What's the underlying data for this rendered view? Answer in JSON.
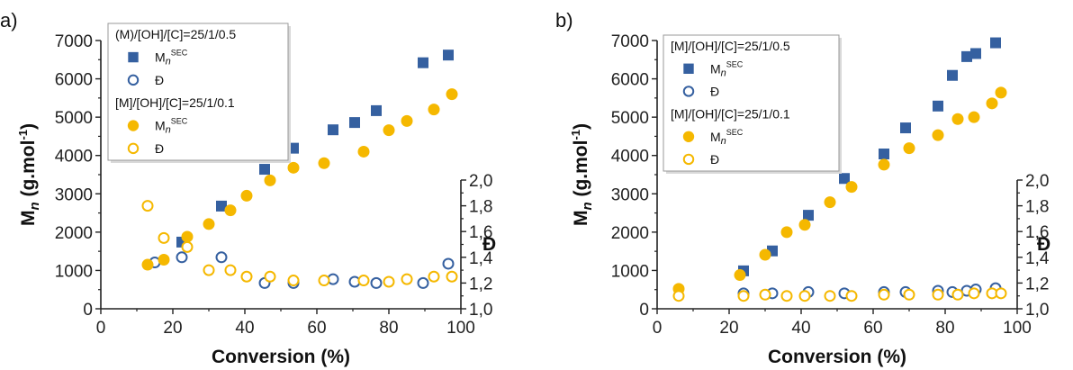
{
  "colors": {
    "blue": "#3560A0",
    "orange": "#F5B800",
    "axis": "#222222"
  },
  "chart_data": [
    {
      "panel": "a)",
      "type": "scatter",
      "xlabel": "Conversion (%)",
      "ylabel_left": {
        "main": "M",
        "sub": "n",
        "rest": " (g.mol",
        "sup": "-1",
        "end": ")"
      },
      "ylabel_right": "Đ",
      "xlim": [
        0,
        100
      ],
      "ylim_left": [
        0,
        7000
      ],
      "ylim_right": [
        1.0,
        2.0
      ],
      "x_ticks": [
        "0",
        "20",
        "40",
        "60",
        "80",
        "100"
      ],
      "y_left_ticks": [
        "0",
        "1000",
        "2000",
        "3000",
        "4000",
        "5000",
        "6000",
        "7000"
      ],
      "y_right_ticks": [
        "1,0",
        "1,2",
        "1,4",
        "1,6",
        "1,8",
        "2,0"
      ],
      "legend": [
        {
          "type": "header",
          "text": "(M)/[OH]/[C]=25/1/0.5"
        },
        {
          "type": "item",
          "marker": "square",
          "color": "blue",
          "text": "M",
          "sub": "n",
          "sup": "SEC"
        },
        {
          "type": "item",
          "marker": "circle-open",
          "color": "blue",
          "text": "Đ"
        },
        {
          "type": "header",
          "text": "[M]/[OH]/[C]=25/1/0.1"
        },
        {
          "type": "item",
          "marker": "circle",
          "color": "orange",
          "text": "M",
          "sub": "n",
          "sup": "SEC"
        },
        {
          "type": "item",
          "marker": "circle-open",
          "color": "orange",
          "text": "Đ"
        }
      ],
      "series": [
        {
          "marker": "square",
          "color": "blue",
          "axis": "left",
          "x": [
            22.5,
            33.5,
            45.5,
            53.5,
            64.5,
            70.5,
            76.5,
            89.5,
            96.5
          ],
          "y": [
            1740,
            2680,
            3640,
            4190,
            4670,
            4860,
            5170,
            6420,
            6620
          ]
        },
        {
          "marker": "circle-open",
          "color": "blue",
          "axis": "right",
          "x": [
            15,
            22.5,
            33.5,
            45.5,
            53.5,
            64.5,
            70.5,
            76.5,
            89.5,
            96.5
          ],
          "y": [
            1.36,
            1.4,
            1.4,
            1.2,
            1.2,
            1.23,
            1.21,
            1.2,
            1.2,
            1.35
          ]
        },
        {
          "marker": "circle",
          "color": "orange",
          "axis": "left",
          "x": [
            13,
            17.5,
            24,
            30,
            36,
            40.5,
            47,
            53.5,
            62,
            73,
            80,
            85,
            92.5,
            97.5
          ],
          "y": [
            1150,
            1280,
            1880,
            2210,
            2570,
            2950,
            3350,
            3680,
            3800,
            4100,
            4660,
            4900,
            5200,
            5600
          ]
        },
        {
          "marker": "circle-open",
          "color": "orange",
          "axis": "right",
          "x": [
            13,
            17.5,
            24,
            30,
            36,
            40.5,
            47,
            53.5,
            62,
            73,
            80,
            85,
            92.5,
            97.5
          ],
          "y": [
            1.8,
            1.55,
            1.48,
            1.3,
            1.3,
            1.25,
            1.25,
            1.22,
            1.22,
            1.22,
            1.21,
            1.23,
            1.25,
            1.25
          ]
        }
      ]
    },
    {
      "panel": "b)",
      "type": "scatter",
      "xlabel": "Conversion (%)",
      "ylabel_left": {
        "main": "M",
        "sub": "n",
        "rest": " (g.mol",
        "sup": "-1",
        "end": ")"
      },
      "ylabel_right": "Đ",
      "xlim": [
        0,
        100
      ],
      "ylim_left": [
        0,
        7000
      ],
      "ylim_right": [
        1.0,
        2.0
      ],
      "x_ticks": [
        "0",
        "20",
        "40",
        "60",
        "80",
        "100"
      ],
      "y_left_ticks": [
        "0",
        "1000",
        "2000",
        "3000",
        "4000",
        "5000",
        "6000",
        "7000"
      ],
      "y_right_ticks": [
        "1,0",
        "1,2",
        "1,4",
        "1,6",
        "1,8",
        "2,0"
      ],
      "legend": [
        {
          "type": "header",
          "text": "[M]/[OH]/[C]=25/1/0.5"
        },
        {
          "type": "item",
          "marker": "square",
          "color": "blue",
          "text": "M",
          "sub": "n",
          "sup": "SEC"
        },
        {
          "type": "item",
          "marker": "circle-open",
          "color": "blue",
          "text": "Đ"
        },
        {
          "type": "header",
          "text": "[M]/[OH]/[C]=25/1/0.1"
        },
        {
          "type": "item",
          "marker": "circle",
          "color": "orange",
          "text": "M",
          "sub": "n",
          "sup": "SEC"
        },
        {
          "type": "item",
          "marker": "circle-open",
          "color": "orange",
          "text": "Đ"
        }
      ],
      "series": [
        {
          "marker": "square",
          "color": "blue",
          "axis": "left",
          "x": [
            24,
            32,
            42,
            52,
            63,
            69,
            78,
            82,
            86,
            88.5,
            94
          ],
          "y": [
            990,
            1510,
            2440,
            3400,
            4040,
            4720,
            5290,
            6090,
            6580,
            6660,
            6940
          ]
        },
        {
          "marker": "circle-open",
          "color": "blue",
          "axis": "right",
          "x": [
            24,
            32,
            42,
            52,
            63,
            69,
            78,
            82,
            86,
            88.5,
            94
          ],
          "y": [
            1.12,
            1.12,
            1.13,
            1.12,
            1.13,
            1.13,
            1.14,
            1.13,
            1.14,
            1.15,
            1.16
          ]
        },
        {
          "marker": "circle",
          "color": "orange",
          "axis": "left",
          "x": [
            6,
            23,
            30,
            36,
            41,
            48,
            54,
            63,
            70,
            78,
            83.5,
            88,
            93,
            95.5
          ],
          "y": [
            520,
            880,
            1410,
            2000,
            2190,
            2780,
            3180,
            3760,
            4190,
            4530,
            4950,
            5000,
            5360,
            5640
          ]
        },
        {
          "marker": "circle-open",
          "color": "orange",
          "axis": "right",
          "x": [
            6,
            24,
            30,
            36,
            41,
            48,
            54,
            63,
            70,
            78,
            83.5,
            88,
            93,
            95.5
          ],
          "y": [
            1.1,
            1.1,
            1.11,
            1.1,
            1.1,
            1.1,
            1.1,
            1.11,
            1.11,
            1.11,
            1.11,
            1.12,
            1.12,
            1.12
          ]
        }
      ]
    }
  ]
}
